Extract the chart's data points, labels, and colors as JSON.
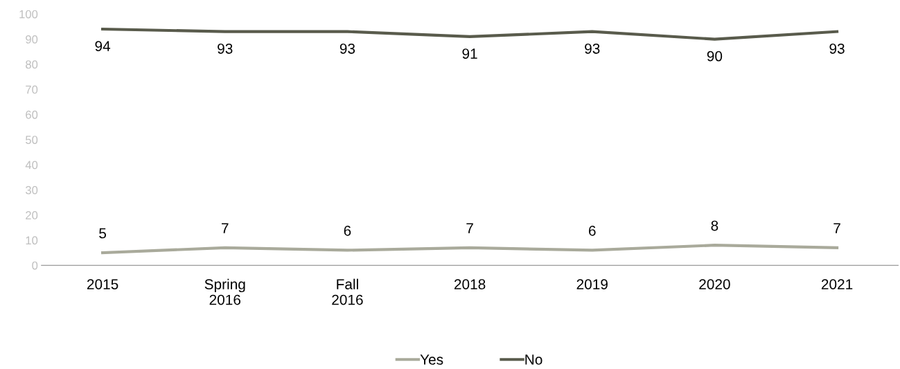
{
  "chart_data": {
    "type": "line",
    "categories": [
      "2015",
      "Spring\n2016",
      "Fall\n2016",
      "2018",
      "2019",
      "2020",
      "2021"
    ],
    "series": [
      {
        "name": "Yes",
        "color": "#a9aa9b",
        "values": [
          5,
          7,
          6,
          7,
          6,
          8,
          7
        ]
      },
      {
        "name": "No",
        "color": "#595b4c",
        "values": [
          94,
          93,
          93,
          91,
          93,
          90,
          93
        ]
      }
    ],
    "ylim": [
      0,
      100
    ],
    "yticks": [
      0,
      10,
      20,
      30,
      40,
      50,
      60,
      70,
      80,
      90,
      100
    ],
    "grid": false,
    "legend": "bottom",
    "data_labels": true,
    "marker": "none",
    "line_style": "solid"
  }
}
